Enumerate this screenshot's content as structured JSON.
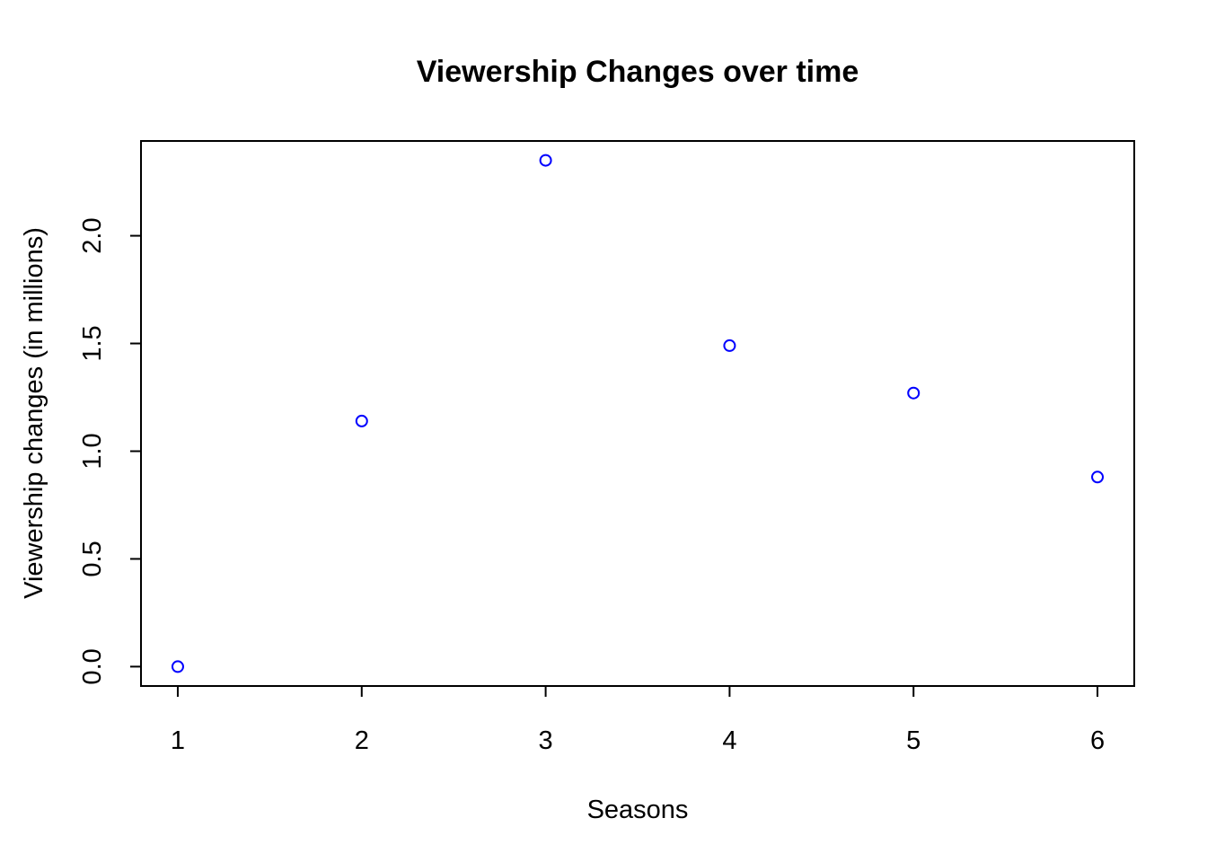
{
  "chart_data": {
    "type": "scatter",
    "title": "Viewership Changes over time",
    "xlabel": "Seasons",
    "ylabel": "Viewership changes (in millions)",
    "x": [
      1,
      2,
      3,
      4,
      5,
      6
    ],
    "y": [
      0.0,
      1.14,
      2.35,
      1.49,
      1.27,
      0.88
    ],
    "xlim": [
      0.8,
      6.2
    ],
    "ylim": [
      -0.09,
      2.44
    ],
    "x_ticks": [
      "1",
      "2",
      "3",
      "4",
      "5",
      "6"
    ],
    "y_ticks": [
      "0.0",
      "0.5",
      "1.0",
      "1.5",
      "2.0"
    ],
    "marker": "open-circle",
    "point_color": "#0000ff",
    "grid": false,
    "legend": "none"
  }
}
